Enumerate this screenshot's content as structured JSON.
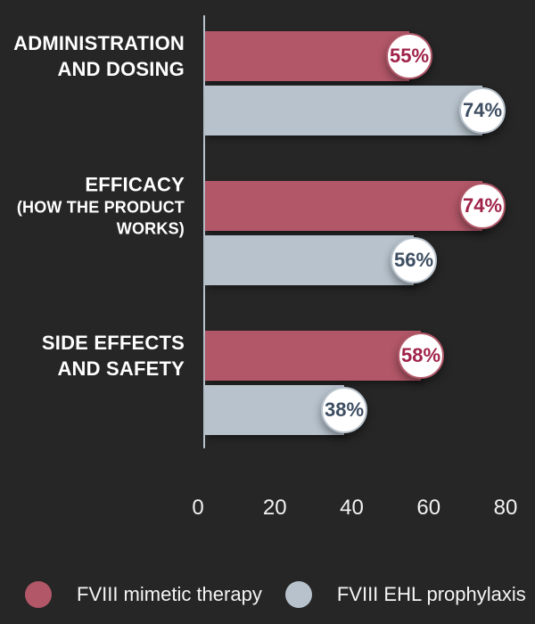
{
  "background": "#262626",
  "chart_data": {
    "type": "bar",
    "orientation": "horizontal",
    "title": "",
    "xlabel": "",
    "ylabel": "",
    "xlim": [
      0,
      80
    ],
    "x_ticks": [
      0,
      20,
      40,
      60,
      80
    ],
    "grid": false,
    "legend_position": "bottom",
    "value_suffix": "%",
    "categories": [
      {
        "lines": [
          "ADMINISTRATION",
          "AND DOSING"
        ],
        "sub_lines": []
      },
      {
        "lines": [
          "EFFICACY"
        ],
        "sub_lines": [
          "(HOW THE PRODUCT",
          "WORKS)"
        ]
      },
      {
        "lines": [
          "SIDE EFFECTS",
          "AND SAFETY"
        ],
        "sub_lines": []
      }
    ],
    "series": [
      {
        "name": "FVIII mimetic therapy",
        "color": "#b25768",
        "value_text_color": "#a02348",
        "values": [
          55,
          74,
          58
        ],
        "value_labels": [
          "55%",
          "74%",
          "58%"
        ]
      },
      {
        "name": "FVIII EHL prophylaxis",
        "color": "#b7c2cc",
        "value_text_color": "#3d4e62",
        "values": [
          74,
          56,
          38
        ],
        "value_labels": [
          "74%",
          "56%",
          "38%"
        ]
      }
    ],
    "colors": {
      "background": "#262626",
      "axis_line": "#b9c4ce",
      "tick_text": "#f2f2f2",
      "category_text": "#ffffff",
      "legend_text": "#f5f5f5",
      "value_circle_bg": "#ffffff"
    }
  }
}
